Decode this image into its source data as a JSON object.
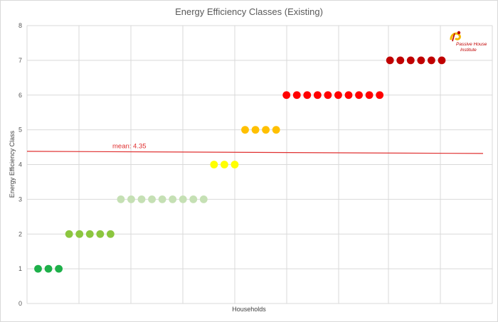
{
  "chart_data": {
    "type": "scatter",
    "title": "Energy Efficiency Classes (Existing)",
    "xlabel": "Households",
    "ylabel": "Energy Efficiency Class",
    "ylim": [
      0,
      8
    ],
    "yticks": [
      "0",
      "1",
      "2",
      "3",
      "4",
      "5",
      "6",
      "7",
      "8"
    ],
    "grid": true,
    "points": [
      {
        "x": 1,
        "y": 1,
        "color": "#1eb04a"
      },
      {
        "x": 2,
        "y": 1,
        "color": "#1eb04a"
      },
      {
        "x": 3,
        "y": 1,
        "color": "#1eb04a"
      },
      {
        "x": 4,
        "y": 2,
        "color": "#8cc63f"
      },
      {
        "x": 5,
        "y": 2,
        "color": "#8cc63f"
      },
      {
        "x": 6,
        "y": 2,
        "color": "#8cc63f"
      },
      {
        "x": 7,
        "y": 2,
        "color": "#8cc63f"
      },
      {
        "x": 8,
        "y": 2,
        "color": "#8cc63f"
      },
      {
        "x": 9,
        "y": 3,
        "color": "#c5e0b4"
      },
      {
        "x": 10,
        "y": 3,
        "color": "#c5e0b4"
      },
      {
        "x": 11,
        "y": 3,
        "color": "#c5e0b4"
      },
      {
        "x": 12,
        "y": 3,
        "color": "#c5e0b4"
      },
      {
        "x": 13,
        "y": 3,
        "color": "#c5e0b4"
      },
      {
        "x": 14,
        "y": 3,
        "color": "#c5e0b4"
      },
      {
        "x": 15,
        "y": 3,
        "color": "#c5e0b4"
      },
      {
        "x": 16,
        "y": 3,
        "color": "#c5e0b4"
      },
      {
        "x": 17,
        "y": 3,
        "color": "#c5e0b4"
      },
      {
        "x": 18,
        "y": 4,
        "color": "#ffff00"
      },
      {
        "x": 19,
        "y": 4,
        "color": "#ffff00"
      },
      {
        "x": 20,
        "y": 4,
        "color": "#ffff00"
      },
      {
        "x": 21,
        "y": 5,
        "color": "#ffc000"
      },
      {
        "x": 22,
        "y": 5,
        "color": "#ffc000"
      },
      {
        "x": 23,
        "y": 5,
        "color": "#ffc000"
      },
      {
        "x": 24,
        "y": 5,
        "color": "#ffc000"
      },
      {
        "x": 25,
        "y": 6,
        "color": "#ff0000"
      },
      {
        "x": 26,
        "y": 6,
        "color": "#ff0000"
      },
      {
        "x": 27,
        "y": 6,
        "color": "#ff0000"
      },
      {
        "x": 28,
        "y": 6,
        "color": "#ff0000"
      },
      {
        "x": 29,
        "y": 6,
        "color": "#ff0000"
      },
      {
        "x": 30,
        "y": 6,
        "color": "#ff0000"
      },
      {
        "x": 31,
        "y": 6,
        "color": "#ff0000"
      },
      {
        "x": 32,
        "y": 6,
        "color": "#ff0000"
      },
      {
        "x": 33,
        "y": 6,
        "color": "#ff0000"
      },
      {
        "x": 34,
        "y": 6,
        "color": "#ff0000"
      },
      {
        "x": 35,
        "y": 7,
        "color": "#c00000"
      },
      {
        "x": 36,
        "y": 7,
        "color": "#c00000"
      },
      {
        "x": 37,
        "y": 7,
        "color": "#c00000"
      },
      {
        "x": 38,
        "y": 7,
        "color": "#c00000"
      },
      {
        "x": 39,
        "y": 7,
        "color": "#c00000"
      },
      {
        "x": 40,
        "y": 7,
        "color": "#c00000"
      }
    ],
    "mean": {
      "value": 4.35,
      "label": "mean: 4.35",
      "color": "#e03030"
    }
  },
  "logo": {
    "line1": "Passive House",
    "line2": "Institute"
  },
  "colors": {
    "grid": "#d9d9d9",
    "axis_text": "#595959",
    "logo_red": "#c00000",
    "logo_yellow": "#f5b800"
  }
}
